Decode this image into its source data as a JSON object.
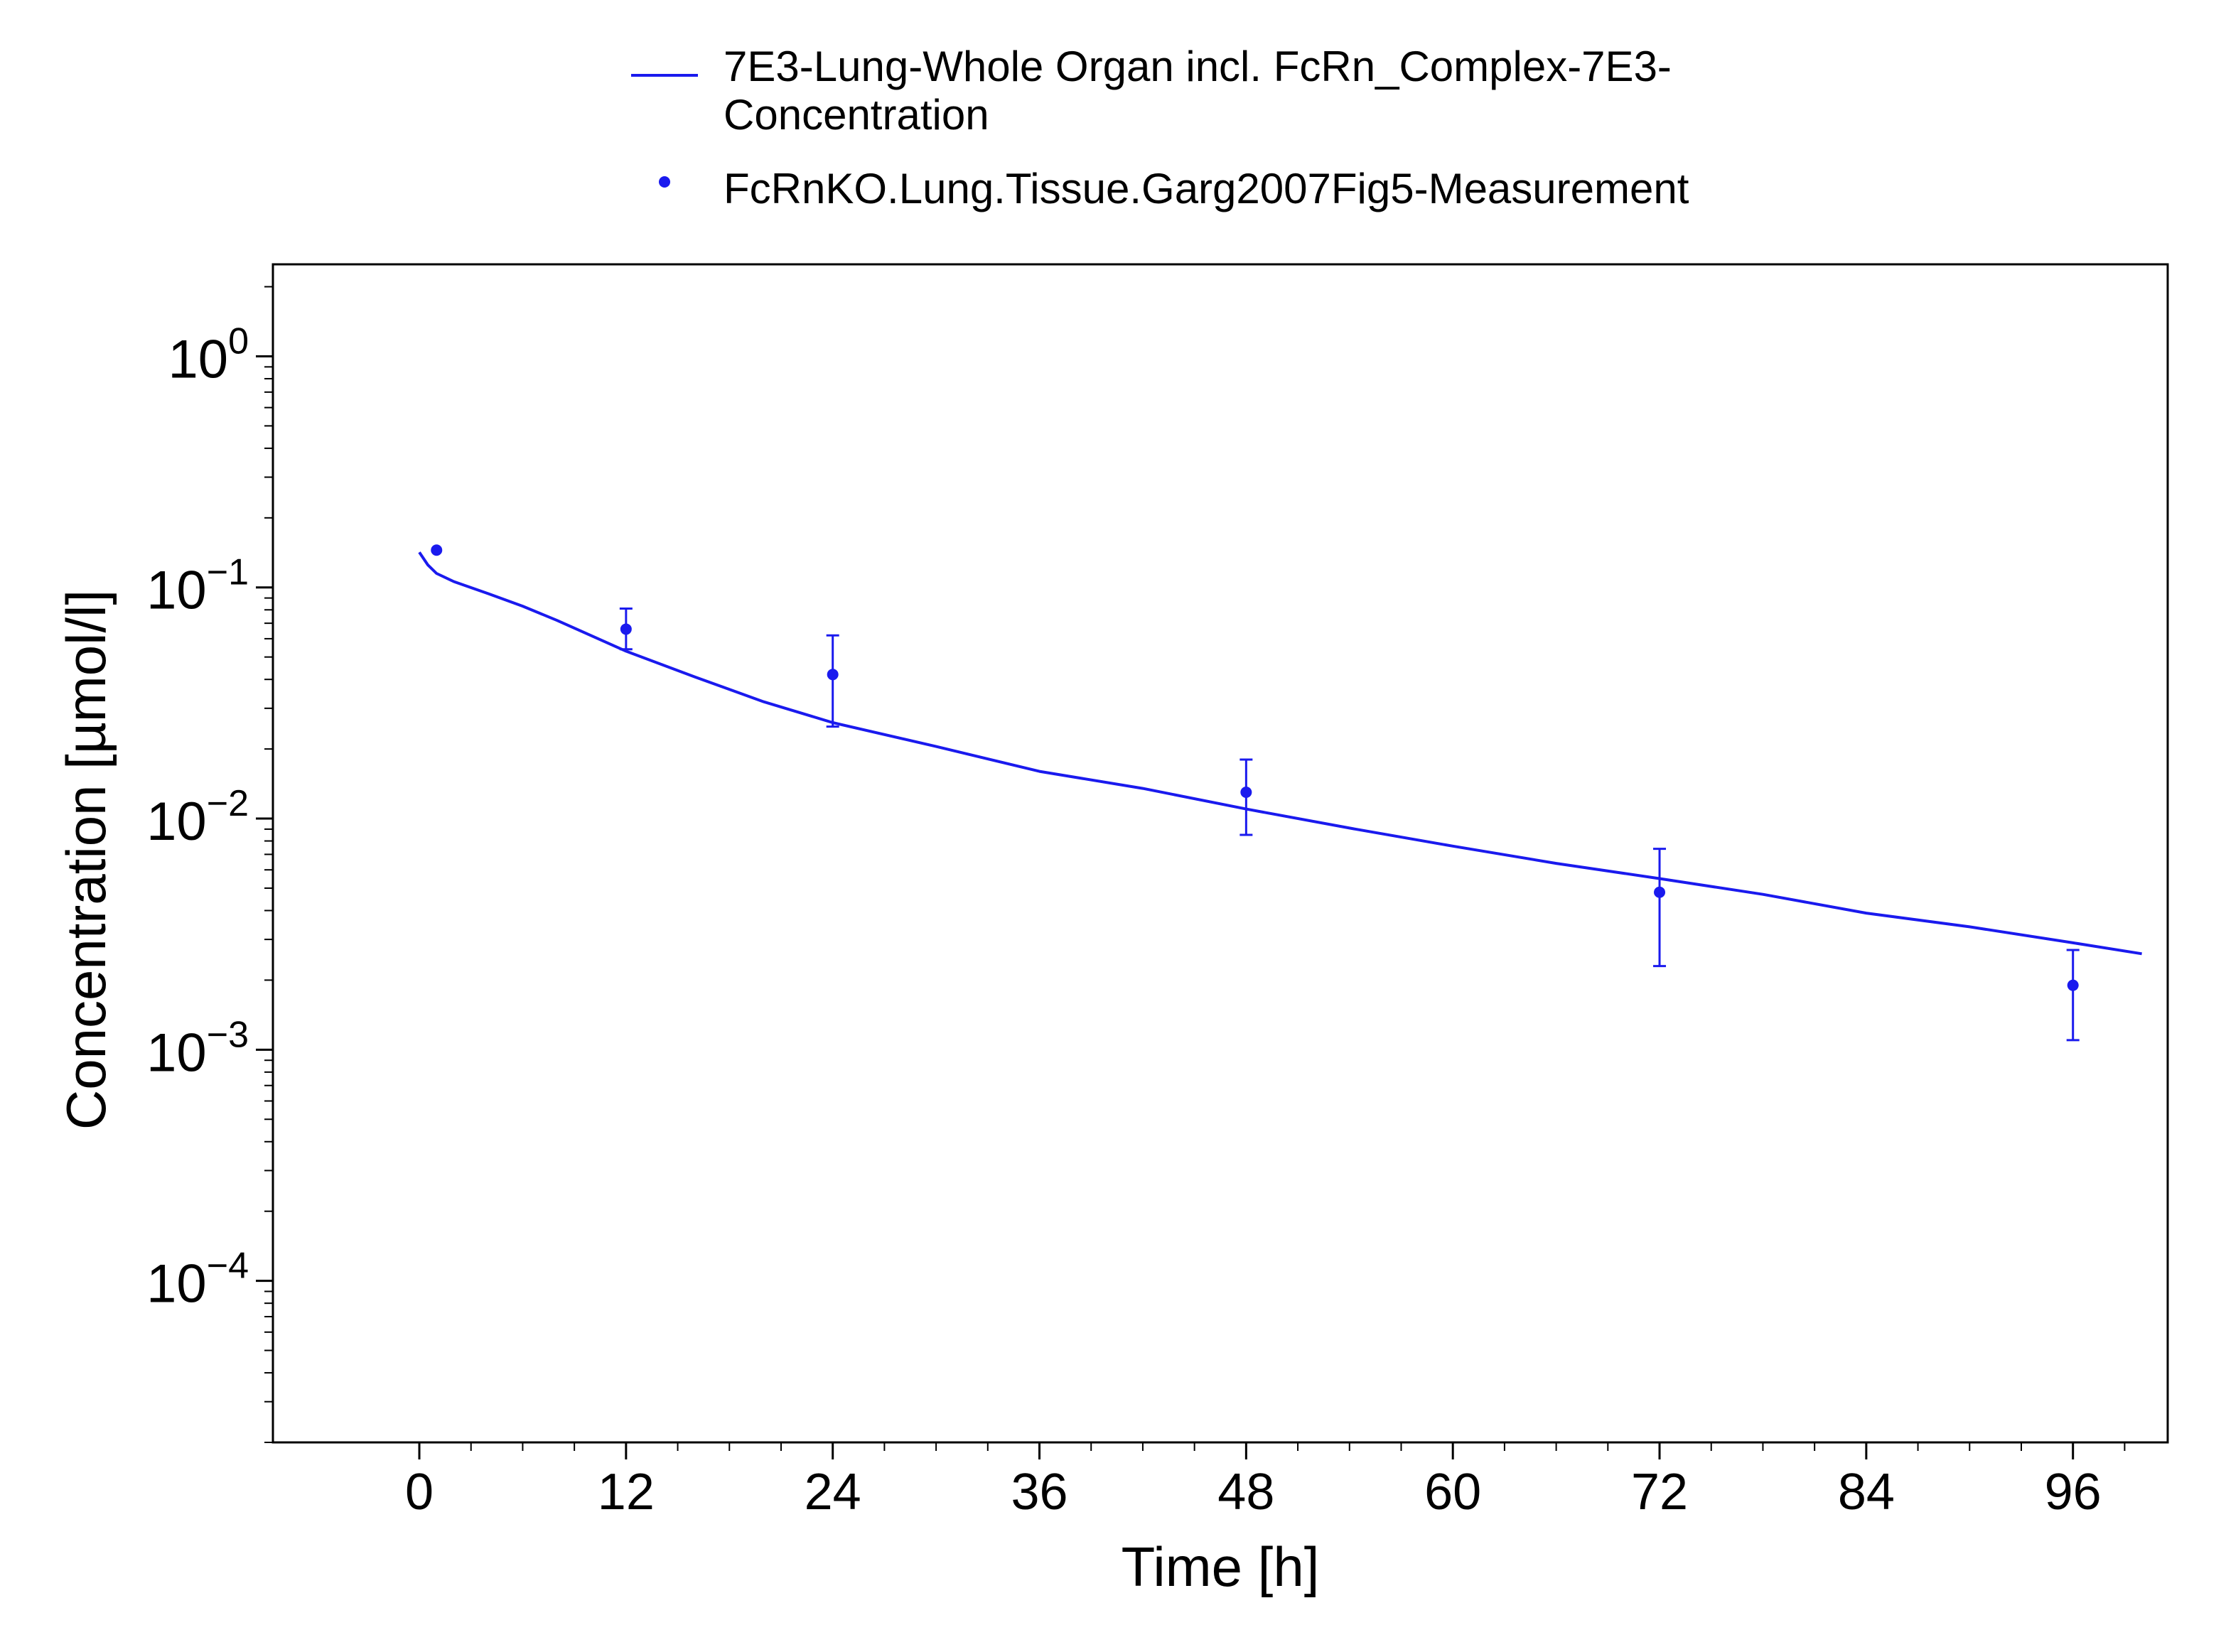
{
  "colors": {
    "series": "#1a1aee",
    "axis": "#000000",
    "background": "#ffffff"
  },
  "legend": {
    "placement": "top-center",
    "entries": [
      {
        "marker": "line",
        "lines": [
          "7E3-Lung-Whole Organ incl. FcRn_Complex-7E3-",
          "Concentration"
        ]
      },
      {
        "marker": "dot",
        "lines": [
          "FcRnKO.Lung.Tissue.Garg2007Fig5-Measurement"
        ]
      }
    ]
  },
  "chart_data": {
    "type": "line",
    "title": "",
    "xlabel": "Time [h]",
    "ylabel": "Concentration [µmol/l]",
    "xlim": [
      -8.5,
      101.5
    ],
    "ylim": [
      2e-05,
      2.5
    ],
    "yscale": "log",
    "grid": false,
    "xticks": [
      0,
      12,
      24,
      36,
      48,
      60,
      72,
      84,
      96
    ],
    "yticks": [
      {
        "base": "10",
        "exp": "0",
        "value": 1
      },
      {
        "base": "10",
        "exp": "−1",
        "value": 0.1
      },
      {
        "base": "10",
        "exp": "−2",
        "value": 0.01
      },
      {
        "base": "10",
        "exp": "−3",
        "value": 0.001
      },
      {
        "base": "10",
        "exp": "−4",
        "value": 0.0001
      }
    ],
    "series": [
      {
        "name": "7E3-Lung-Whole Organ incl. FcRn_Complex-7E3-Concentration",
        "kind": "line",
        "x": [
          0,
          0.5,
          1,
          2,
          4,
          6,
          8,
          12,
          16,
          20,
          24,
          30,
          36,
          42,
          48,
          54,
          60,
          66,
          72,
          78,
          84,
          90,
          96,
          100
        ],
        "y": [
          0.142,
          0.125,
          0.115,
          0.106,
          0.094,
          0.083,
          0.072,
          0.053,
          0.041,
          0.032,
          0.026,
          0.0205,
          0.016,
          0.0135,
          0.011,
          0.0091,
          0.0076,
          0.0064,
          0.0055,
          0.0047,
          0.0039,
          0.0034,
          0.0029,
          0.0026
        ]
      },
      {
        "name": "FcRnKO.Lung.Tissue.Garg2007Fig5-Measurement",
        "kind": "scatter",
        "points": [
          {
            "x": 1,
            "y": 0.145,
            "err_low": null,
            "err_high": null
          },
          {
            "x": 12,
            "y": 0.066,
            "err_low": 0.054,
            "err_high": 0.081
          },
          {
            "x": 24,
            "y": 0.042,
            "err_low": 0.025,
            "err_high": 0.062
          },
          {
            "x": 48,
            "y": 0.013,
            "err_low": 0.0085,
            "err_high": 0.018
          },
          {
            "x": 72,
            "y": 0.0048,
            "err_low": 0.0023,
            "err_high": 0.0074
          },
          {
            "x": 96,
            "y": 0.0019,
            "err_low": 0.0011,
            "err_high": 0.0027
          }
        ]
      }
    ]
  }
}
